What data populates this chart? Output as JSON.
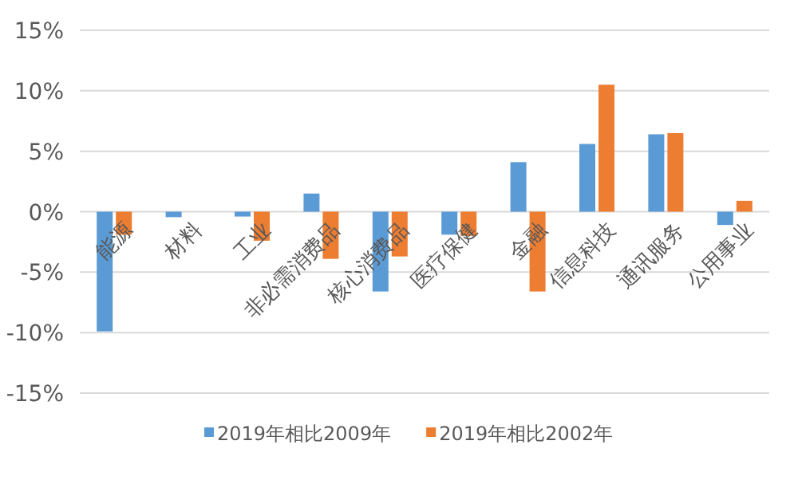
{
  "chart_data": {
    "type": "bar",
    "categories": [
      "能源",
      "材料",
      "工业",
      "非必需消费品",
      "核心消费品",
      "医疗保健",
      "金融",
      "信息科技",
      "通讯服务",
      "公用事业"
    ],
    "series": [
      {
        "name": "2019年相比2009年",
        "color": "#5b9bd5",
        "values": [
          -9.9,
          -0.45,
          -0.4,
          1.5,
          -6.6,
          -1.9,
          4.1,
          5.6,
          6.4,
          -1.1
        ]
      },
      {
        "name": "2019年相比2002年",
        "color": "#ed7d31",
        "values": [
          -1.9,
          null,
          -2.4,
          -3.9,
          -3.7,
          -2.0,
          -6.6,
          10.5,
          6.5,
          0.9
        ]
      }
    ],
    "ylim": [
      -15,
      15
    ],
    "yticks": [
      {
        "value": -15,
        "label": "-15%"
      },
      {
        "value": -10,
        "label": "-10%"
      },
      {
        "value": -5,
        "label": "-5%"
      },
      {
        "value": 0,
        "label": "0%"
      },
      {
        "value": 5,
        "label": "5%"
      },
      {
        "value": 10,
        "label": "10%"
      },
      {
        "value": 15,
        "label": "15%"
      }
    ],
    "grid": "y",
    "legend": "bottom"
  }
}
